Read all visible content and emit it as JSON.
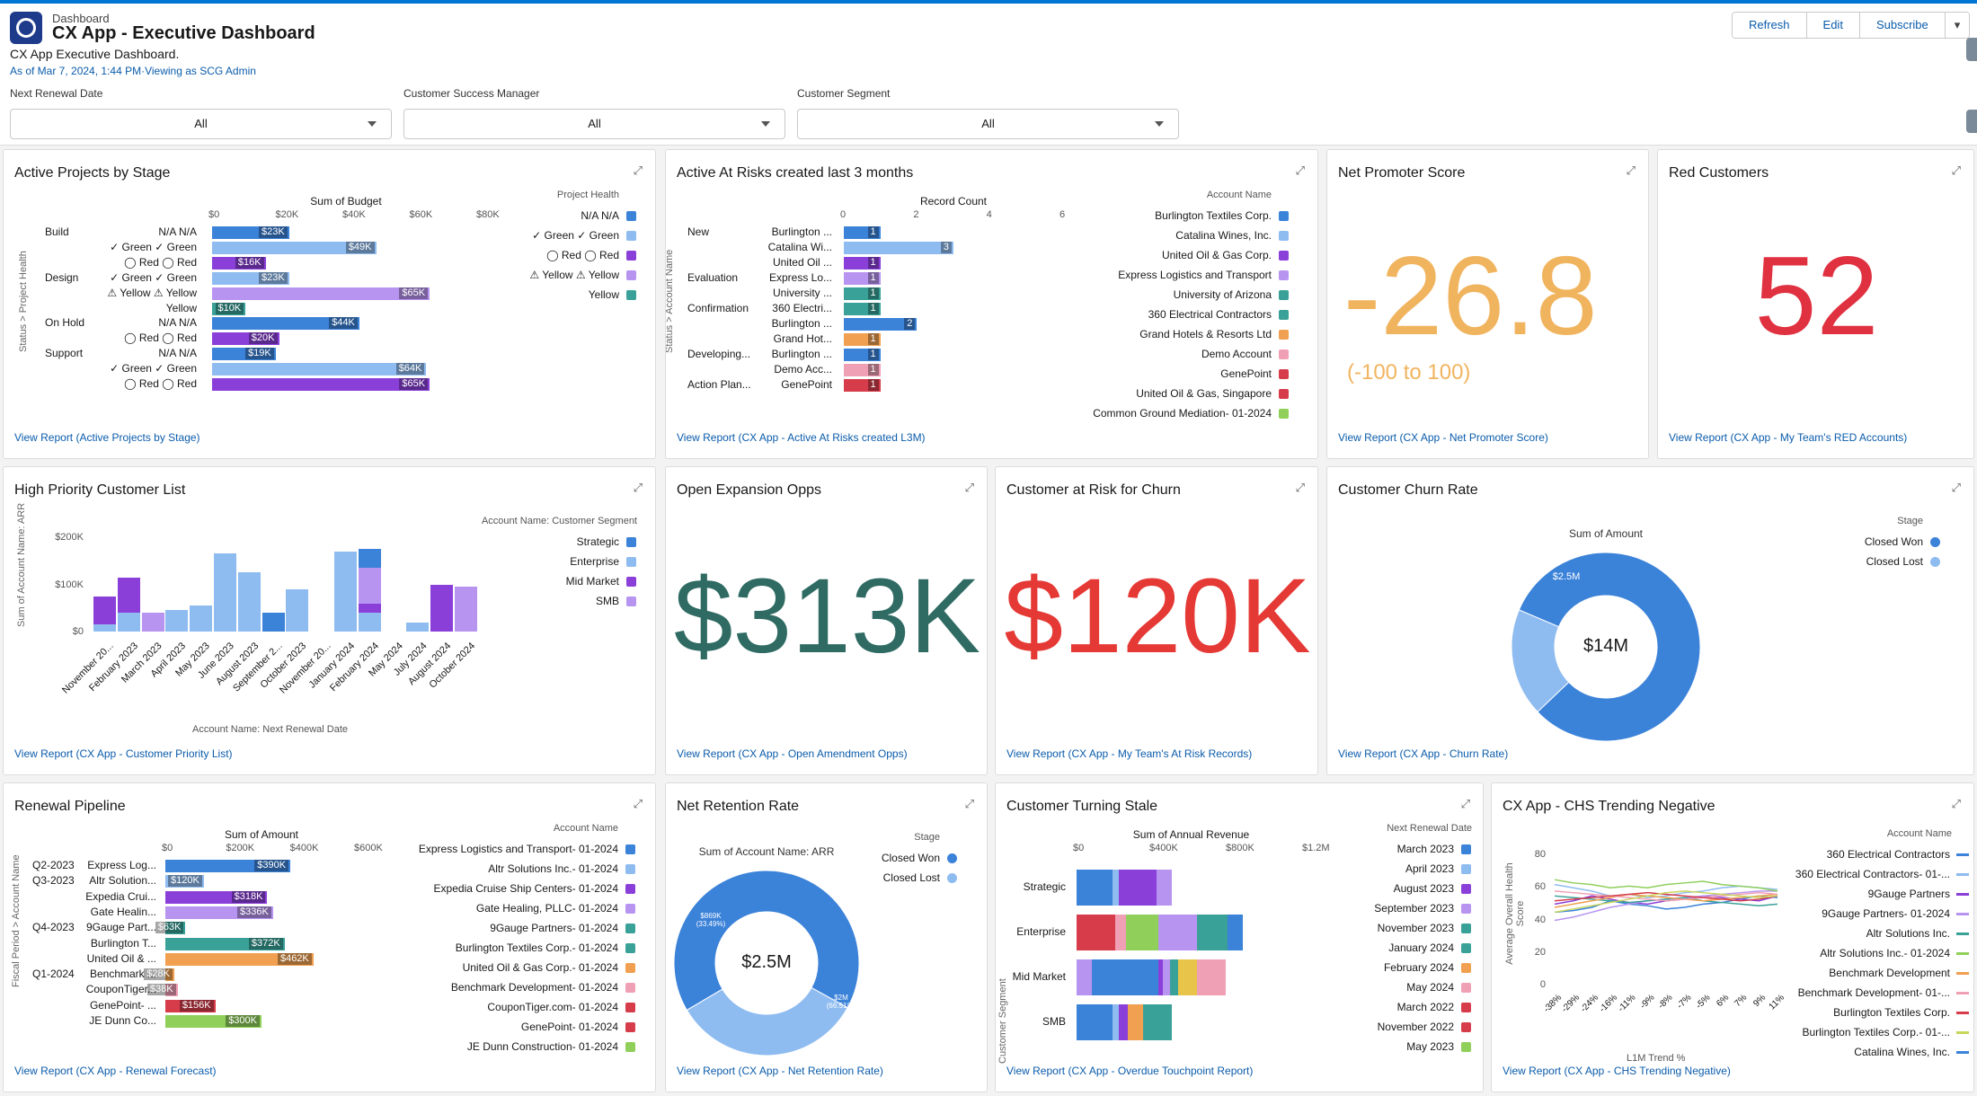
{
  "header": {
    "type": "Dashboard",
    "title": "CX App - Executive Dashboard",
    "description": "CX App Executive Dashboard.",
    "as_of": "As of Mar 7, 2024, 1:44 PM·Viewing as SCG Admin",
    "buttons": [
      "Refresh",
      "Edit",
      "Subscribe"
    ]
  },
  "filters": [
    {
      "label": "Next Renewal Date",
      "value": "All"
    },
    {
      "label": "Customer Success Manager",
      "value": "All"
    },
    {
      "label": "Customer Segment",
      "value": "All"
    }
  ],
  "cards": {
    "active_projects": {
      "title": "Active Projects by Stage",
      "link": "View Report (Active Projects by Stage)"
    },
    "at_risks": {
      "title": "Active At Risks created last 3 months",
      "link": "View Report (CX App - Active At Risks created L3M)"
    },
    "nps": {
      "title": "Net Promoter Score",
      "value": "-26.8",
      "range": "(-100 to 100)",
      "link": "View Report (CX App - Net Promoter Score)"
    },
    "red": {
      "title": "Red Customers",
      "value": "52",
      "link": "View Report (CX App - My Team's RED Accounts)"
    },
    "high_priority": {
      "title": "High Priority Customer List",
      "link": "View Report (CX App - Customer Priority List)"
    },
    "expansion": {
      "title": "Open Expansion Opps",
      "value": "$313K",
      "link": "View Report (CX App - Open Amendment Opps)"
    },
    "churn_risk": {
      "title": "Customer at Risk for Churn",
      "value": "$120K",
      "link": "View Report (CX App - My Team's At Risk Records)"
    },
    "churn_rate": {
      "title": "Customer Churn Rate",
      "link": "View Report (CX App - Churn Rate)"
    },
    "renewal": {
      "title": "Renewal Pipeline",
      "link": "View Report (CX App - Renewal Forecast)"
    },
    "retention": {
      "title": "Net Retention Rate",
      "link": "View Report (CX App - Net Retention Rate)"
    },
    "stale": {
      "title": "Customer Turning Stale",
      "link": "View Report (CX App - Overdue Touchpoint Report)"
    },
    "chs": {
      "title": "CX App - CHS Trending Negative",
      "link": "View Report (CX App - CHS Trending Negative)"
    }
  },
  "colors": {
    "blue": "#3b82d9",
    "lightblue": "#8fbcf0",
    "purple": "#8b3fd9",
    "lavender": "#b794f0",
    "teal": "#3aa198",
    "orange": "#f0a050",
    "pink": "#f0a0b4",
    "red": "#d63c4a",
    "green": "#8fcf5a",
    "yellow": "#e8c44a",
    "nps": "#f1b45e",
    "redkpi": "#e03140",
    "tealkpi": "#2f6b63",
    "churnkpi": "#e53935"
  },
  "chart_data": [
    {
      "type": "bar",
      "title": "Active Projects by Stage",
      "xlabel": "Sum of Budget",
      "ylabel": "Status > Project Health",
      "ticks": [
        "$0",
        "$20K",
        "$40K",
        "$60K",
        "$80K"
      ],
      "xlim": [
        0,
        80000
      ],
      "legend_title": "Project Health",
      "legend": [
        "N/A N/A",
        "✓ Green ✓ Green",
        "◯ Red ◯ Red",
        "⚠ Yellow ⚠ Yellow",
        "Yellow"
      ],
      "rows": [
        {
          "group": "Build",
          "label": "N/A N/A",
          "value": 23000,
          "vlabel": "$23K",
          "color": "blue"
        },
        {
          "group": "",
          "label": "✓ Green ✓ Green",
          "value": 49000,
          "vlabel": "$49K",
          "color": "lightblue"
        },
        {
          "group": "",
          "label": "◯ Red ◯ Red",
          "value": 16000,
          "vlabel": "$16K",
          "color": "purple"
        },
        {
          "group": "Design",
          "label": "✓ Green ✓ Green",
          "value": 23000,
          "vlabel": "$23K",
          "color": "lightblue"
        },
        {
          "group": "",
          "label": "⚠ Yellow ⚠ Yellow",
          "value": 65000,
          "vlabel": "$65K",
          "color": "lavender"
        },
        {
          "group": "",
          "label": "Yellow",
          "value": 10000,
          "vlabel": "$10K",
          "color": "teal"
        },
        {
          "group": "On Hold",
          "label": "N/A N/A",
          "value": 44000,
          "vlabel": "$44K",
          "color": "blue"
        },
        {
          "group": "",
          "label": "◯ Red ◯ Red",
          "value": 20000,
          "vlabel": "$20K",
          "color": "purple"
        },
        {
          "group": "Support",
          "label": "N/A N/A",
          "value": 19000,
          "vlabel": "$19K",
          "color": "blue"
        },
        {
          "group": "",
          "label": "✓ Green ✓ Green",
          "value": 64000,
          "vlabel": "$64K",
          "color": "lightblue"
        },
        {
          "group": "",
          "label": "◯ Red ◯ Red",
          "value": 65000,
          "vlabel": "$65K",
          "color": "purple"
        }
      ]
    },
    {
      "type": "bar",
      "title": "Active At Risks created last 3 months",
      "xlabel": "Record Count",
      "ylabel": "Status > Account Name",
      "ticks": [
        "0",
        "2",
        "4",
        "6"
      ],
      "xlim": [
        0,
        6
      ],
      "legend_title": "Account Name",
      "legend": [
        "Burlington Textiles Corp.",
        "Catalina Wines, Inc.",
        "United Oil & Gas Corp.",
        "Express Logistics and Transport",
        "University of Arizona",
        "360 Electrical Contractors",
        "Grand Hotels & Resorts Ltd",
        "Demo Account",
        "GenePoint",
        "United Oil & Gas, Singapore",
        "Common Ground Mediation- 01-2024"
      ],
      "rows": [
        {
          "group": "New",
          "label": "Burlington ...",
          "value": 1,
          "color": "blue"
        },
        {
          "group": "",
          "label": "Catalina Wi...",
          "value": 3,
          "color": "lightblue"
        },
        {
          "group": "",
          "label": "United Oil ...",
          "value": 1,
          "color": "purple"
        },
        {
          "group": "Evaluation",
          "label": "Express Lo...",
          "value": 1,
          "color": "lavender"
        },
        {
          "group": "",
          "label": "University ...",
          "value": 1,
          "color": "teal"
        },
        {
          "group": "Confirmation",
          "label": "360 Electri...",
          "value": 1,
          "color": "teal"
        },
        {
          "group": "",
          "label": "Burlington ...",
          "value": 2,
          "color": "blue"
        },
        {
          "group": "",
          "label": "Grand Hot...",
          "value": 1,
          "color": "orange"
        },
        {
          "group": "Developing...",
          "label": "Burlington ...",
          "value": 1,
          "color": "blue"
        },
        {
          "group": "",
          "label": "Demo Acc...",
          "value": 1,
          "color": "pink"
        },
        {
          "group": "Action Plan...",
          "label": "GenePoint",
          "value": 1,
          "color": "red"
        }
      ]
    },
    {
      "type": "bar",
      "title": "High Priority Customer List",
      "xlabel": "Account Name: Next Renewal Date",
      "ylabel": "Sum of Account Name: ARR",
      "ticks": [
        "$0",
        "$100K",
        "$200K"
      ],
      "ylim": [
        0,
        200000
      ],
      "legend_title": "Account Name: Customer Segment",
      "legend": [
        "Strategic",
        "Enterprise",
        "Mid Market",
        "SMB"
      ],
      "categories": [
        "November 20...",
        "February 2023",
        "March 2023",
        "April 2023",
        "May 2023",
        "June 2023",
        "August 2023",
        "September 2...",
        "October 2023",
        "November 20...",
        "January 2024",
        "February 2024",
        "May 2024",
        "July 2024",
        "August 2024",
        "October 2024"
      ],
      "series": [
        {
          "name": "Strategic",
          "values": [
            0,
            0,
            0,
            0,
            0,
            0,
            0,
            40000,
            0,
            0,
            0,
            40000,
            0,
            0,
            0,
            0
          ]
        },
        {
          "name": "Enterprise",
          "values": [
            15000,
            40000,
            0,
            45000,
            55000,
            165000,
            125000,
            0,
            90000,
            0,
            170000,
            40000,
            0,
            20000,
            0,
            0
          ]
        },
        {
          "name": "Mid Market",
          "values": [
            60000,
            75000,
            0,
            0,
            0,
            0,
            0,
            0,
            0,
            0,
            0,
            20000,
            0,
            0,
            100000,
            0
          ]
        },
        {
          "name": "SMB",
          "values": [
            0,
            0,
            40000,
            0,
            0,
            0,
            0,
            0,
            0,
            0,
            0,
            75000,
            0,
            0,
            0,
            95000
          ]
        }
      ]
    },
    {
      "type": "pie",
      "title": "Customer Churn Rate",
      "subtitle": "Sum of Amount",
      "center": "$14M",
      "legend_title": "Stage",
      "labels": [
        "Closed Won",
        "Closed Lost"
      ],
      "values": [
        11,
        2.5
      ],
      "slice_labels": [
        "$11M",
        "$2.5M"
      ]
    },
    {
      "type": "bar",
      "title": "Renewal Pipeline",
      "xlabel": "Sum of Amount",
      "ylabel": "Fiscal Period > Account Name",
      "ticks": [
        "$0",
        "$200K",
        "$400K",
        "$600K"
      ],
      "xlim": [
        0,
        600000
      ],
      "legend_title": "Account Name",
      "legend": [
        "Express Logistics and Transport- 01-2024",
        "Altr Solutions Inc.- 01-2024",
        "Expedia Cruise Ship Centers- 01-2024",
        "Gate Healing, PLLC- 01-2024",
        "9Gauge Partners- 01-2024",
        "Burlington Textiles Corp.- 01-2024",
        "United Oil & Gas Corp.- 01-2024",
        "Benchmark Development- 01-2024",
        "CouponTiger.com- 01-2024",
        "GenePoint- 01-2024",
        "JE Dunn Construction- 01-2024"
      ],
      "rows": [
        {
          "group": "Q2-2023",
          "label": "Express Log...",
          "value": 390000,
          "vlabel": "$390K",
          "color": "blue"
        },
        {
          "group": "Q3-2023",
          "label": "Altr Solution...",
          "value": 120000,
          "vlabel": "$120K",
          "color": "lightblue"
        },
        {
          "group": "",
          "label": "Expedia Crui...",
          "value": 318000,
          "vlabel": "$318K",
          "color": "purple"
        },
        {
          "group": "",
          "label": "Gate Healin...",
          "value": 336000,
          "vlabel": "$336K",
          "color": "lavender"
        },
        {
          "group": "Q4-2023",
          "label": "9Gauge Part...",
          "value": 63000,
          "vlabel": "$63K",
          "color": "teal"
        },
        {
          "group": "",
          "label": "Burlington T...",
          "value": 372000,
          "vlabel": "$372K",
          "color": "teal"
        },
        {
          "group": "",
          "label": "United Oil & ...",
          "value": 462000,
          "vlabel": "$462K",
          "color": "orange"
        },
        {
          "group": "Q1-2024",
          "label": "Benchmark ...",
          "value": 28000,
          "vlabel": "$28K",
          "color": "orange"
        },
        {
          "group": "",
          "label": "CouponTiger...",
          "value": 38000,
          "vlabel": "$38K",
          "color": "pink"
        },
        {
          "group": "",
          "label": "GenePoint- ...",
          "value": 156000,
          "vlabel": "$156K",
          "color": "red"
        },
        {
          "group": "",
          "label": "JE Dunn Co...",
          "value": 300000,
          "vlabel": "$300K",
          "color": "green"
        }
      ]
    },
    {
      "type": "pie",
      "title": "Net Retention Rate",
      "subtitle": "Sum of Account Name: ARR",
      "center": "$2.5M",
      "legend_title": "Stage",
      "labels": [
        "Closed Won",
        "Closed Lost"
      ],
      "values": [
        66.51,
        33.49
      ],
      "slice_labels": [
        "$2M (66.51%)",
        "$869K (33.49%)"
      ]
    },
    {
      "type": "bar",
      "title": "Customer Turning Stale",
      "xlabel": "Sum of Annual Revenue",
      "ylabel": "Customer Segment",
      "ticks": [
        "$0",
        "$400K",
        "$800K",
        "$1.2M"
      ],
      "xlim": [
        0,
        1200000
      ],
      "legend_title": "Next Renewal Date",
      "legend": [
        "March 2023",
        "April 2023",
        "August 2023",
        "September 2023",
        "November 2023",
        "January 2024",
        "February 2024",
        "May 2024",
        "March 2022",
        "November 2022",
        "May 2023"
      ],
      "categories": [
        "Strategic",
        "Enterprise",
        "Mid Market",
        "SMB"
      ],
      "stacks": [
        [
          [
            "blue",
            190000
          ],
          [
            "lightblue",
            30000
          ],
          [
            "purple",
            200000
          ],
          [
            "lavender",
            80000
          ],
          [
            "teal",
            0
          ]
        ],
        [
          [
            "red",
            200000
          ],
          [
            "pink",
            60000
          ],
          [
            "green",
            170000
          ],
          [
            "lavender",
            200000
          ],
          [
            "teal",
            160000
          ],
          [
            "orange",
            0
          ],
          [
            "blue",
            80000
          ]
        ],
        [
          [
            "lavender",
            80000
          ],
          [
            "blue",
            350000
          ],
          [
            "purple",
            20000
          ],
          [
            "lavender",
            40000
          ],
          [
            "teal",
            40000
          ],
          [
            "yellow",
            100000
          ],
          [
            "pink",
            150000
          ]
        ],
        [
          [
            "blue",
            190000
          ],
          [
            "lightblue",
            30000
          ],
          [
            "purple",
            50000
          ],
          [
            "orange",
            80000
          ],
          [
            "teal",
            150000
          ]
        ]
      ]
    },
    {
      "type": "line",
      "title": "CX App - CHS Trending Negative",
      "xlabel": "L1M Trend %",
      "ylabel": "Average Overall Health Score",
      "ticks": [
        "0",
        "20",
        "40",
        "60",
        "80"
      ],
      "ylim": [
        0,
        80
      ],
      "categories": [
        "-38%",
        "-29%",
        "-24%",
        "-16%",
        "-11%",
        "-9%",
        "-8%",
        "-7%",
        "-5%",
        "6%",
        "7%",
        "9%",
        "11%"
      ],
      "legend_title": "Account Name",
      "legend": [
        "360 Electrical Contractors",
        "360 Electrical Contractors- 01-...",
        "9Gauge Partners",
        "9Gauge Partners- 01-2024",
        "Altr Solutions Inc.",
        "Altr Solutions Inc.- 01-2024",
        "Benchmark Development",
        "Benchmark Development- 01-...",
        "Burlington Textiles Corp.",
        "Burlington Textiles Corp.- 01-...",
        "Catalina Wines, Inc."
      ]
    }
  ]
}
